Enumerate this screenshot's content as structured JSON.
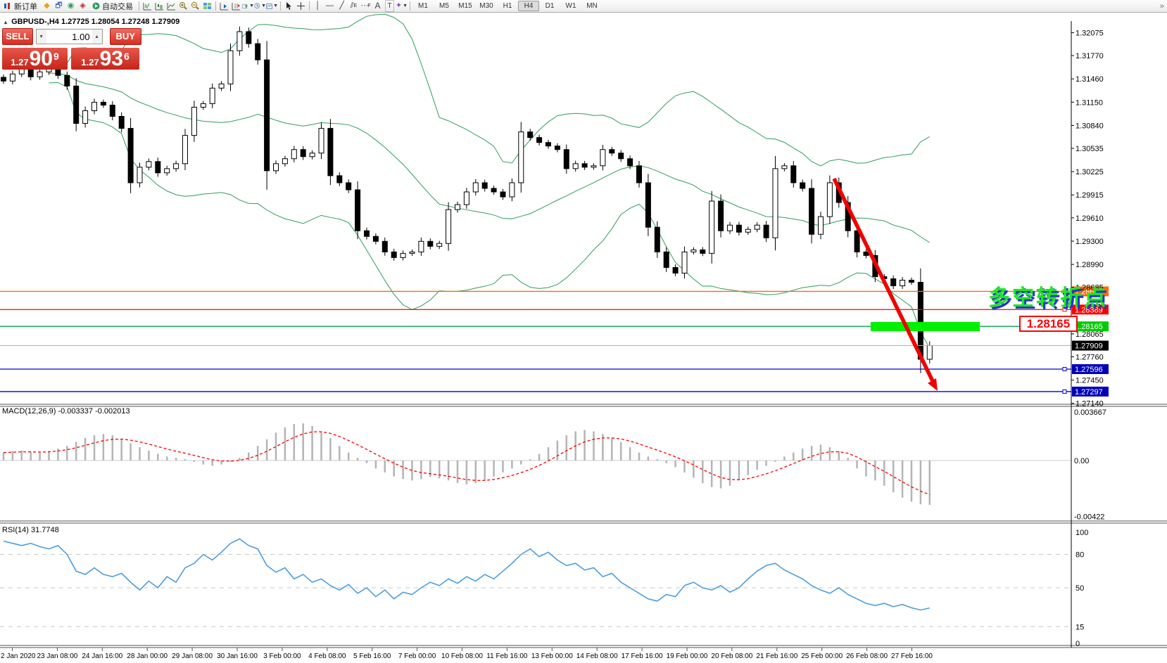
{
  "toolbar": {
    "new_order_label": "新订单",
    "auto_trading_label": "自动交易",
    "timeframes": [
      "M1",
      "M5",
      "M15",
      "M30",
      "H1",
      "H4",
      "D1",
      "W1",
      "MN"
    ],
    "active_timeframe": "H4",
    "letters": {
      "equidistant": "E",
      "fibonacci": "F",
      "text": "A",
      "label": "T"
    },
    "overflow": "»"
  },
  "header": {
    "symbol": "GBPUSD-,H4",
    "ohlc": "1.27725 1.28054 1.27248 1.27909"
  },
  "trade_panel": {
    "sell_label": "SELL",
    "buy_label": "BUY",
    "volume": "1.00",
    "sell_price": {
      "small": "1.27",
      "big": "90",
      "sup": "9"
    },
    "buy_price": {
      "small": "1.27",
      "big": "93",
      "sup": "6"
    }
  },
  "panes": {
    "macd_label": "MACD(12,26,9) -0.003337 -0.002013",
    "rsi_label": "RSI(14) 31.7748"
  },
  "annotation": {
    "text": "多空转折点",
    "price_callout": "1.28165"
  },
  "axis": {
    "main_ticks": [
      "1.32075",
      "1.31770",
      "1.31460",
      "1.31150",
      "1.30840",
      "1.30535",
      "1.30225",
      "1.29915",
      "1.29610",
      "1.29300",
      "1.28990",
      "1.28685",
      "1.28065",
      "1.27760",
      "1.27450",
      "1.27140"
    ],
    "macd_ticks": [
      "0.003667",
      "0.00",
      "-0.00422"
    ],
    "rsi_ticks": [
      "100",
      "80",
      "50",
      "15",
      "0"
    ],
    "rsi_levels": [
      80,
      50,
      15
    ]
  },
  "price_lines": [
    {
      "value": "1.28631",
      "color": "#ff6a00",
      "label_bg": "#ff6a00"
    },
    {
      "value": "1.28389",
      "color": "#ff0000",
      "label_bg": "#ff0000"
    },
    {
      "value": "1.28165",
      "color": "#00a84f",
      "label_bg": "#00ca00"
    },
    {
      "value": "1.27909",
      "color": "#b0b0b0",
      "label_bg": "#000000",
      "current": true
    },
    {
      "value": "1.27596",
      "color": "#0000cc",
      "label_bg": "#0000bb"
    },
    {
      "value": "1.27297",
      "color": "#0000cc",
      "label_bg": "#0000bb"
    }
  ],
  "colors": {
    "bull": "#ffffff",
    "bear": "#000000",
    "band": "#2e9e5e",
    "macd_hist": "#b4b4b4",
    "macd_signal": "#ff0000",
    "rsi": "#4c9edd",
    "arrow": "#f00000",
    "highlight_rect": "#00f000"
  },
  "chart_data": [
    {
      "type": "candlestick",
      "title": "GBPUSD- H4",
      "ylabel": "price",
      "ylim": [
        1.2714,
        1.32075
      ],
      "overlay": "Bollinger Bands (20,2)",
      "closes": [
        1.31431,
        1.31525,
        1.316,
        1.31487,
        1.31553,
        1.31619,
        1.31506,
        1.31365,
        1.30867,
        1.31036,
        1.31149,
        1.31111,
        1.30961,
        1.30801,
        1.30077,
        1.30284,
        1.30359,
        1.30209,
        1.30265,
        1.30331,
        1.30707,
        1.31083,
        1.3113,
        1.31337,
        1.31393,
        1.31835,
        1.32089,
        1.31929,
        1.31713,
        1.30237,
        1.30331,
        1.30397,
        1.30519,
        1.30425,
        1.30472,
        1.30801,
        1.30171,
        1.30077,
        1.29983,
        1.29438,
        1.29363,
        1.29297,
        1.29156,
        1.29081,
        1.29137,
        1.29156,
        1.29297,
        1.29231,
        1.29269,
        1.2972,
        1.29786,
        1.29955,
        1.30077,
        1.30002,
        1.29955,
        1.29889,
        1.30077,
        1.30754,
        1.30679,
        1.30613,
        1.30566,
        1.30519,
        1.30265,
        1.30331,
        1.30284,
        1.30303,
        1.30519,
        1.30472,
        1.30397,
        1.30303,
        1.30077,
        1.29485,
        1.29156,
        1.28949,
        1.28874,
        1.29156,
        1.29184,
        1.29137,
        1.29833,
        1.29438,
        1.29513,
        1.29419,
        1.29457,
        1.29513,
        1.29344,
        1.30265,
        1.30303,
        1.30077,
        1.30002,
        1.29391,
        1.29626,
        1.30077,
        1.29814,
        1.29438,
        1.29156,
        1.29109,
        1.28827,
        1.28799,
        1.28705,
        1.2878,
        1.28752,
        1.27727,
        1.27909
      ]
    },
    {
      "type": "bar",
      "title": "MACD(12,26,9)",
      "current_values": [
        -0.003337,
        -0.002013
      ],
      "ylim": [
        -0.00422,
        0.003667
      ],
      "values": [
        0.0006,
        0.0007,
        0.00075,
        0.00065,
        0.0006,
        0.0007,
        0.0009,
        0.0011,
        0.0014,
        0.0017,
        0.0019,
        0.002,
        0.0019,
        0.00165,
        0.0013,
        0.001,
        0.00075,
        0.0005,
        0.0003,
        0.0002,
        0.0001,
        -0.0001,
        -0.0003,
        -0.0004,
        -0.0003,
        -0.0001,
        0.0002,
        0.0006,
        0.0011,
        0.0016,
        0.0021,
        0.0025,
        0.00275,
        0.0028,
        0.0026,
        0.0022,
        0.0017,
        0.0011,
        0.0006,
        0.0002,
        -0.0002,
        -0.0006,
        -0.0009,
        -0.0012,
        -0.0014,
        -0.0015,
        -0.0014,
        -0.00125,
        -0.00135,
        -0.0015,
        -0.0017,
        -0.0018,
        -0.0017,
        -0.0015,
        -0.0012,
        -0.0009,
        -0.0006,
        -0.0003,
        0.0001,
        0.0005,
        0.001,
        0.0015,
        0.0019,
        0.0022,
        0.0023,
        0.0022,
        0.002,
        0.0017,
        0.0014,
        0.001,
        0.0006,
        0.0003,
        0.0001,
        -0.0002,
        -0.0005,
        -0.0009,
        -0.0013,
        -0.0017,
        -0.002,
        -0.0021,
        -0.0019,
        -0.0015,
        -0.0011,
        -0.0007,
        -0.0004,
        -0.0001,
        0.0003,
        0.0006,
        0.0009,
        0.0011,
        0.0012,
        0.001,
        0.0007,
        0.0002,
        -0.0006,
        -0.0012,
        -0.0015,
        -0.0019,
        -0.0024,
        -0.0028,
        -0.0031,
        -0.0033,
        -0.00334
      ]
    },
    {
      "type": "line",
      "title": "RSI(14)",
      "current_value": 31.7748,
      "ylim": [
        0,
        100
      ],
      "values": [
        92,
        90,
        88,
        90,
        87,
        85,
        88,
        80,
        65,
        62,
        68,
        62,
        60,
        63,
        55,
        48,
        56,
        50,
        60,
        55,
        68,
        72,
        80,
        75,
        82,
        90,
        94,
        88,
        85,
        70,
        64,
        68,
        58,
        62,
        55,
        58,
        52,
        48,
        53,
        45,
        50,
        42,
        48,
        40,
        46,
        44,
        50,
        55,
        52,
        58,
        54,
        60,
        56,
        62,
        58,
        65,
        72,
        80,
        85,
        78,
        82,
        75,
        70,
        72,
        66,
        68,
        60,
        63,
        55,
        50,
        45,
        40,
        38,
        44,
        42,
        52,
        55,
        50,
        48,
        52,
        46,
        50,
        58,
        65,
        70,
        72,
        66,
        62,
        58,
        52,
        48,
        45,
        50,
        44,
        40,
        36,
        34,
        36,
        33,
        35,
        32,
        30,
        31.8
      ]
    }
  ],
  "dates": [
    "2 Jan 2020",
    "23 Jan 08:00",
    "24 Jan 16:00",
    "28 Jan 00:00",
    "29 Jan 08:00",
    "30 Jan 16:00",
    "3 Feb 00:00",
    "4 Feb 08:00",
    "5 Feb 16:00",
    "7 Feb 00:00",
    "10 Feb 08:00",
    "11 Feb 16:00",
    "13 Feb 00:00",
    "14 Feb 08:00",
    "17 Feb 16:00",
    "19 Feb 00:00",
    "20 Feb 08:00",
    "21 Feb 16:00",
    "25 Feb 00:00",
    "26 Feb 08:00",
    "27 Feb 16:00"
  ]
}
